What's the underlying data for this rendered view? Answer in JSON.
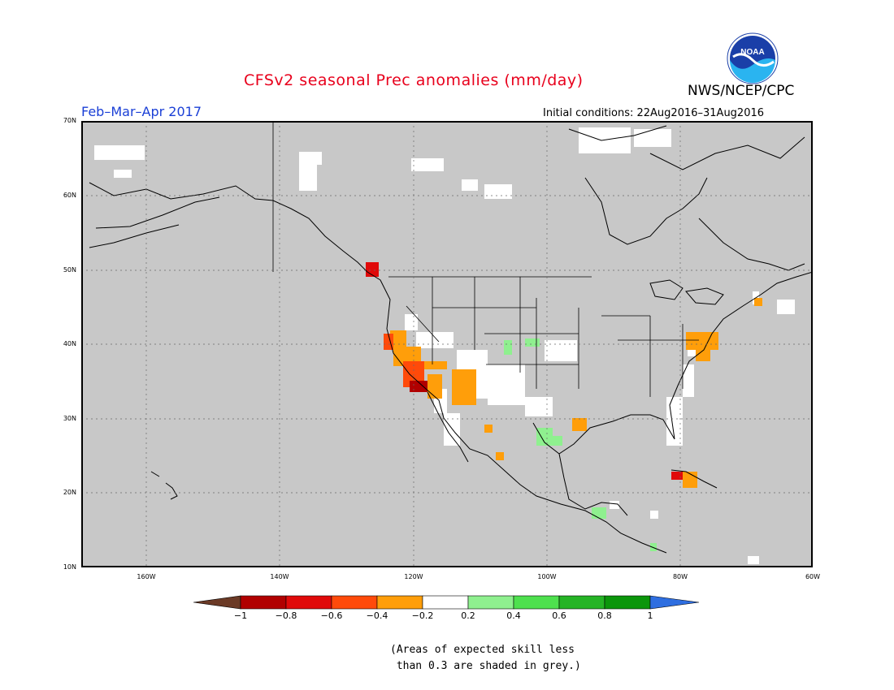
{
  "header": {
    "title": "CFSv2 seasonal Prec anomalies (mm/day)",
    "period": "Feb–Mar–Apr 2017",
    "initial_conditions": "Initial conditions: 22Aug2016–31Aug2016",
    "agency": "NWS/NCEP/CPC",
    "logo_text": "NOAA"
  },
  "axes": {
    "lat_labels": [
      "70N",
      "60N",
      "50N",
      "40N",
      "30N",
      "20N",
      "10N"
    ],
    "lon_labels": [
      "160W",
      "140W",
      "120W",
      "100W",
      "80W",
      "60W"
    ]
  },
  "colorbar": {
    "labels": [
      "−1",
      "−0.8",
      "−0.6",
      "−0.4",
      "−0.2",
      "0.2",
      "0.4",
      "0.6",
      "0.8",
      "1"
    ],
    "colors": [
      "#6b3a26",
      "#b10000",
      "#e00a0a",
      "#ff4a0a",
      "#ff9e0a",
      "#ffffff",
      "#8ff08f",
      "#4ee04e",
      "#25b425",
      "#0b960b",
      "#2e6ee0"
    ]
  },
  "note": {
    "line1": "(Areas of expected skill less",
    "line2": " than 0.3 are shaded in grey.)"
  },
  "colors": {
    "background_grey": "#c8c8c8",
    "title_red": "#e8001c",
    "period_blue": "#1a3fd6"
  }
}
